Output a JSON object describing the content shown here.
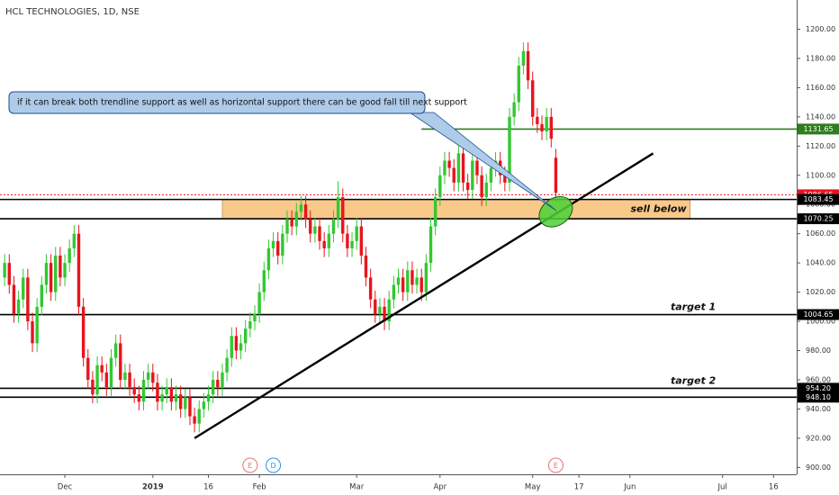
{
  "chart_data": {
    "type": "candlestick",
    "title": "HCL TECHNOLOGIES, 1D, NSE",
    "up_color": "#32c832",
    "down_color": "#e8141c",
    "xlim": [
      0,
      172
    ],
    "ylim": [
      895.3,
      1220
    ],
    "xticks": [
      {
        "value": 14,
        "label": "Dec"
      },
      {
        "value": 33,
        "label": "2019"
      },
      {
        "value": 45,
        "label": "16"
      },
      {
        "value": 56,
        "label": "Feb"
      },
      {
        "value": 77,
        "label": "Mar"
      },
      {
        "value": 95,
        "label": "Apr"
      },
      {
        "value": 115,
        "label": "May"
      },
      {
        "value": 125,
        "label": "17"
      },
      {
        "value": 136,
        "label": "Jun"
      },
      {
        "value": 156,
        "label": "Jul"
      },
      {
        "value": 167,
        "label": "16"
      }
    ],
    "yticks": [
      {
        "value": 900,
        "label": "900.00"
      },
      {
        "value": 920,
        "label": "920.00"
      },
      {
        "value": 940,
        "label": "940.00"
      },
      {
        "value": 960,
        "label": "960.00"
      },
      {
        "value": 980,
        "label": "980.00"
      },
      {
        "value": 1000,
        "label": "1000.00"
      },
      {
        "value": 1020,
        "label": "1020.00"
      },
      {
        "value": 1040,
        "label": "1040.00"
      },
      {
        "value": 1060,
        "label": "1060.00"
      },
      {
        "value": 1080,
        "label": "1080.00"
      },
      {
        "value": 1100,
        "label": "1100.00"
      },
      {
        "value": 1120,
        "label": "1120.00"
      },
      {
        "value": 1140,
        "label": "1140.00"
      },
      {
        "value": 1160,
        "label": "1160.00"
      },
      {
        "value": 1180,
        "label": "1180.00"
      },
      {
        "value": 1200,
        "label": "1200.00"
      }
    ],
    "x": [
      1,
      2,
      3,
      4,
      5,
      6,
      7,
      8,
      9,
      10,
      11,
      12,
      13,
      14,
      15,
      16,
      17,
      18,
      19,
      20,
      21,
      22,
      23,
      24,
      25,
      26,
      27,
      28,
      29,
      30,
      31,
      32,
      33,
      34,
      35,
      36,
      37,
      38,
      39,
      40,
      41,
      42,
      43,
      44,
      45,
      46,
      47,
      48,
      49,
      50,
      51,
      52,
      53,
      54,
      55,
      56,
      57,
      58,
      59,
      60,
      61,
      62,
      63,
      64,
      65,
      66,
      67,
      68,
      69,
      70,
      71,
      72,
      73,
      74,
      75,
      76,
      77,
      78,
      79,
      80,
      81,
      82,
      83,
      84,
      85,
      86,
      87,
      88,
      89,
      90,
      91,
      92,
      93,
      94,
      95,
      96,
      97,
      98,
      99,
      100,
      101,
      102,
      103,
      104,
      105,
      106,
      107,
      108,
      109,
      110,
      111,
      112,
      113,
      114,
      115,
      116,
      117,
      118,
      119,
      120
    ],
    "open": [
      1030,
      1040,
      1025,
      1005,
      1015,
      1030,
      1000,
      985,
      1010,
      1025,
      1040,
      1020,
      1045,
      1030,
      1040,
      1050,
      1060,
      1010,
      975,
      960,
      950,
      970,
      965,
      955,
      975,
      985,
      960,
      965,
      955,
      950,
      945,
      960,
      965,
      958,
      945,
      950,
      955,
      945,
      950,
      940,
      948,
      935,
      930,
      940,
      945,
      950,
      960,
      955,
      965,
      975,
      990,
      980,
      985,
      995,
      1000,
      1005,
      1020,
      1035,
      1050,
      1055,
      1045,
      1060,
      1070,
      1065,
      1075,
      1080,
      1070,
      1060,
      1065,
      1055,
      1050,
      1060,
      1070,
      1085,
      1060,
      1050,
      1055,
      1065,
      1045,
      1030,
      1015,
      1005,
      1010,
      1000,
      1015,
      1025,
      1030,
      1020,
      1035,
      1025,
      1030,
      1020,
      1040,
      1065,
      1085,
      1100,
      1110,
      1105,
      1095,
      1115,
      1095,
      1090,
      1110,
      1100,
      1085,
      1095,
      1105,
      1110,
      1100,
      1095,
      1140,
      1150,
      1175,
      1185,
      1165,
      1140,
      1135,
      1130,
      1140,
      1112
    ],
    "high": [
      1046,
      1046,
      1031,
      1021,
      1036,
      1036,
      1006,
      1016,
      1031,
      1046,
      1046,
      1051,
      1051,
      1046,
      1056,
      1066,
      1066,
      1016,
      981,
      966,
      976,
      976,
      971,
      981,
      991,
      991,
      971,
      971,
      961,
      956,
      966,
      971,
      971,
      964,
      956,
      961,
      961,
      956,
      956,
      954,
      954,
      941,
      946,
      951,
      956,
      966,
      966,
      971,
      981,
      996,
      996,
      991,
      1001,
      1006,
      1011,
      1026,
      1041,
      1056,
      1061,
      1061,
      1066,
      1076,
      1076,
      1081,
      1086,
      1086,
      1076,
      1071,
      1071,
      1061,
      1066,
      1076,
      1096,
      1091,
      1066,
      1061,
      1071,
      1071,
      1051,
      1036,
      1021,
      1016,
      1016,
      1021,
      1031,
      1036,
      1036,
      1041,
      1041,
      1036,
      1036,
      1046,
      1071,
      1091,
      1106,
      1116,
      1116,
      1111,
      1121,
      1121,
      1101,
      1116,
      1116,
      1106,
      1101,
      1111,
      1116,
      1116,
      1106,
      1146,
      1156,
      1181,
      1191,
      1191,
      1171,
      1146,
      1141,
      1146,
      1146,
      1118
    ],
    "low": [
      1024,
      1019,
      999,
      999,
      1009,
      994,
      979,
      979,
      1004,
      1019,
      1014,
      1014,
      1024,
      1024,
      1034,
      1044,
      1004,
      969,
      954,
      944,
      944,
      959,
      949,
      949,
      969,
      954,
      954,
      949,
      944,
      939,
      939,
      954,
      952,
      939,
      939,
      944,
      939,
      939,
      934,
      934,
      929,
      924,
      924,
      934,
      939,
      944,
      949,
      949,
      959,
      969,
      974,
      974,
      979,
      989,
      994,
      999,
      1014,
      1029,
      1044,
      1039,
      1039,
      1054,
      1059,
      1059,
      1069,
      1064,
      1054,
      1054,
      1049,
      1044,
      1044,
      1054,
      1064,
      1054,
      1044,
      1044,
      1049,
      1039,
      1024,
      1009,
      999,
      999,
      994,
      994,
      1009,
      1019,
      1014,
      1014,
      1019,
      1019,
      1014,
      1014,
      1034,
      1059,
      1079,
      1094,
      1099,
      1089,
      1089,
      1089,
      1084,
      1084,
      1094,
      1079,
      1079,
      1089,
      1099,
      1094,
      1089,
      1089,
      1134,
      1144,
      1169,
      1159,
      1134,
      1129,
      1124,
      1124,
      1119,
      1082
    ],
    "close": [
      1040,
      1025,
      1005,
      1015,
      1030,
      1000,
      985,
      1010,
      1025,
      1040,
      1020,
      1045,
      1030,
      1040,
      1050,
      1060,
      1010,
      975,
      960,
      950,
      970,
      965,
      955,
      975,
      985,
      960,
      965,
      955,
      950,
      945,
      960,
      965,
      958,
      945,
      950,
      955,
      945,
      950,
      940,
      948,
      935,
      930,
      940,
      945,
      950,
      960,
      955,
      965,
      975,
      990,
      980,
      985,
      995,
      1000,
      1005,
      1020,
      1035,
      1050,
      1055,
      1045,
      1060,
      1070,
      1065,
      1075,
      1080,
      1070,
      1060,
      1065,
      1055,
      1050,
      1060,
      1070,
      1085,
      1060,
      1050,
      1055,
      1065,
      1045,
      1030,
      1015,
      1005,
      1010,
      1000,
      1015,
      1025,
      1030,
      1020,
      1035,
      1025,
      1030,
      1020,
      1040,
      1065,
      1085,
      1100,
      1110,
      1105,
      1095,
      1115,
      1095,
      1090,
      1110,
      1100,
      1085,
      1095,
      1105,
      1110,
      1100,
      1095,
      1140,
      1150,
      1175,
      1185,
      1165,
      1140,
      1135,
      1130,
      1140,
      1125,
      1088
    ],
    "levels": [
      {
        "price": 1131.65,
        "color": "#2e7d1e",
        "from_x": 91
      },
      {
        "price": 1086.65,
        "color": "#e8141c",
        "dotted": true
      },
      {
        "price": 1083.45,
        "color": "#000000"
      },
      {
        "price": 1070.25,
        "color": "#000000"
      },
      {
        "price": 1004.65,
        "color": "#000000",
        "text": "target 1"
      },
      {
        "price": 954.2,
        "price_label": "954.20",
        "color": "#000000",
        "text": "target 2"
      },
      {
        "price": 948.1,
        "price_label": "948.10",
        "color": "#000000"
      }
    ],
    "zone": {
      "x": [
        48,
        149
      ],
      "color": "#f9c98a",
      "text": "sell below"
    },
    "trendline": {
      "x": [
        42,
        141
      ],
      "y": [
        920,
        1115
      ]
    },
    "highlight": {
      "x": 120,
      "y": 1075,
      "color": "#4cd137"
    },
    "callout": "if it can break both trendline support as well as horizontal support there can be good fall till next support",
    "events": [
      {
        "x": 54,
        "label": "E",
        "color": "#e57373"
      },
      {
        "x": 59,
        "label": "D",
        "color": "#2196f3"
      },
      {
        "x": 120,
        "label": "E",
        "color": "#e57373"
      }
    ]
  }
}
